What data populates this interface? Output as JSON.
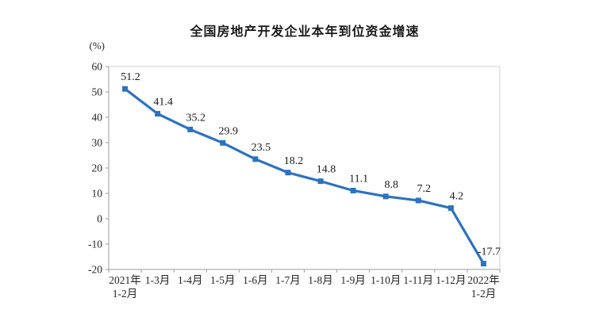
{
  "page": {
    "background": "#ffffff"
  },
  "header": {
    "title": "全国房地产开发企业本年到位资金增速"
  },
  "chart_data": {
    "type": "line",
    "title": "全国房地产开发企业本年到位资金增速",
    "unit_label": "(%)",
    "categories": [
      "2021年\n1-2月",
      "1-3月",
      "1-4月",
      "1-5月",
      "1-6月",
      "1-7月",
      "1-8月",
      "1-9月",
      "1-10月",
      "1-11月",
      "1-12月",
      "2022年\n1-2月"
    ],
    "values": [
      51.2,
      41.4,
      35.2,
      29.9,
      23.5,
      18.2,
      14.8,
      11.1,
      8.8,
      7.2,
      4.2,
      -17.7
    ],
    "data_labels": [
      "51.2",
      "41.4",
      "35.2",
      "29.9",
      "23.5",
      "18.2",
      "14.8",
      "11.1",
      "8.8",
      "7.2",
      "4.2",
      "-17.7"
    ],
    "yticks": [
      60,
      50,
      40,
      30,
      20,
      10,
      0,
      -10,
      -20
    ],
    "ylim": [
      -20,
      60
    ],
    "xlabel": "",
    "ylabel": "(%)",
    "grid": false,
    "legend": "none",
    "marker": "square",
    "colors": {
      "line": "#2B73BF",
      "marker": "#2B73BF",
      "axis": "#9e9e9e",
      "plot_border": "#cfcfcf",
      "text": "#262626"
    }
  }
}
